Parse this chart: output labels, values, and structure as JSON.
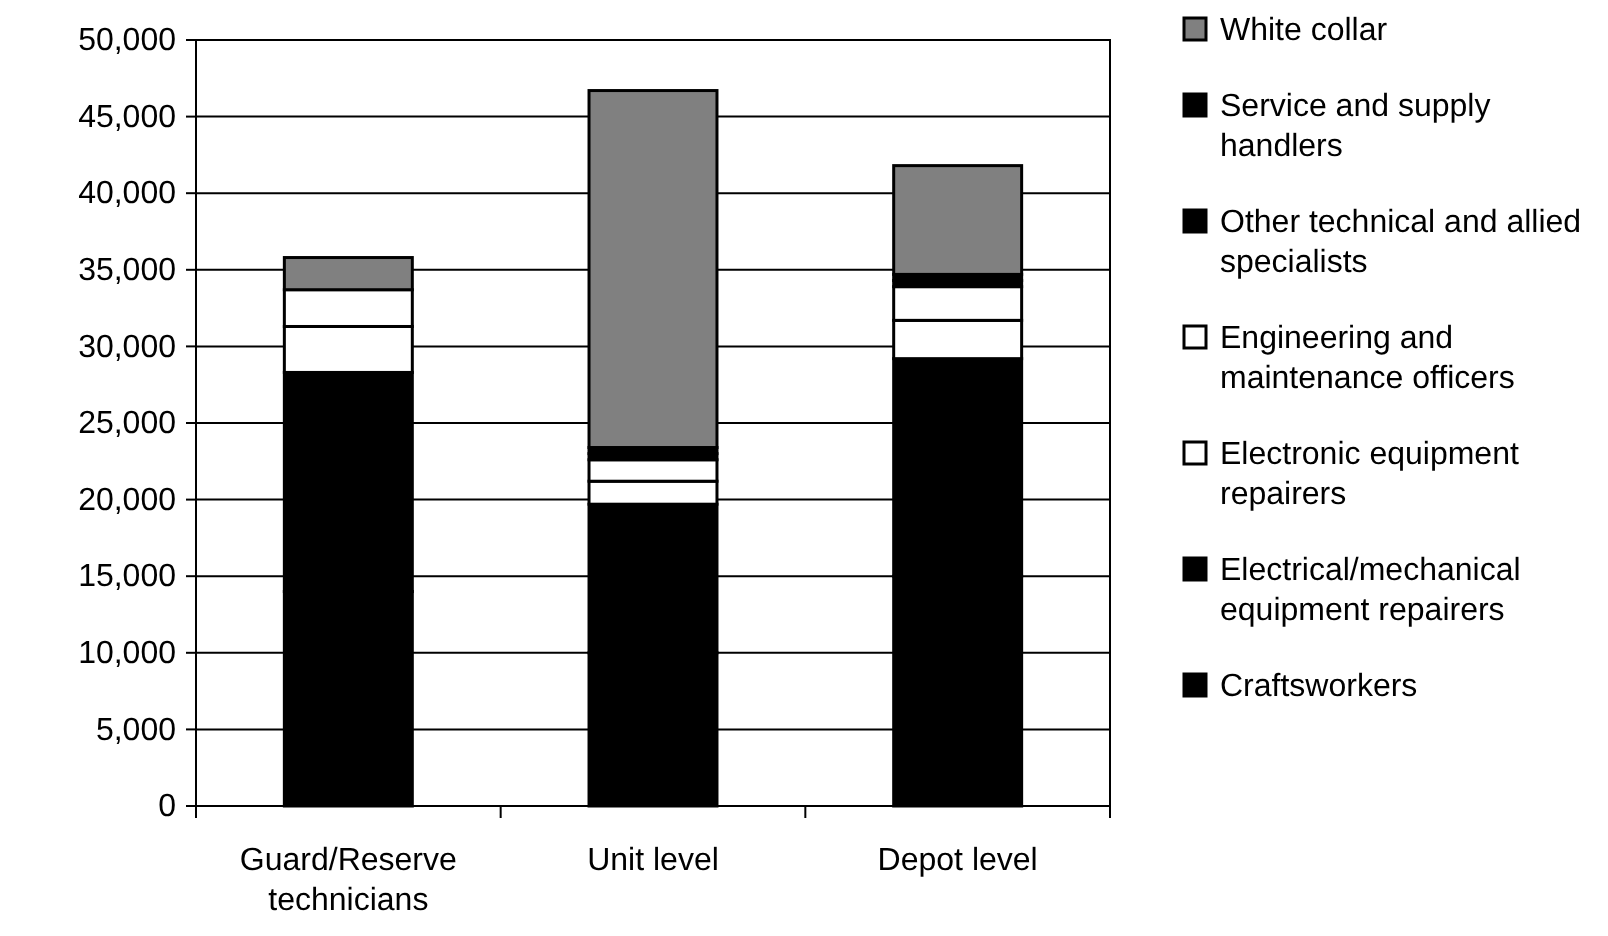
{
  "chart_data": {
    "type": "bar",
    "stacked": true,
    "categories": [
      "Guard/Reserve technicians",
      "Unit level",
      "Depot level"
    ],
    "series": [
      {
        "name": "Craftsworkers",
        "color": "#000000",
        "values": [
          14000,
          10000,
          15000
        ]
      },
      {
        "name": "Electrical/mechanical equipment repairers",
        "color": "#000000",
        "values": [
          14300,
          9700,
          14200
        ]
      },
      {
        "name": "Electronic equipment repairers",
        "color": "#ffffff",
        "values": [
          3000,
          1500,
          2500
        ]
      },
      {
        "name": "Engineering and maintenance officers",
        "color": "#ffffff",
        "values": [
          2400,
          1400,
          2200
        ]
      },
      {
        "name": "Other technical and allied specialists",
        "color": "#000000",
        "values": [
          0,
          400,
          400
        ]
      },
      {
        "name": "Service and supply handlers",
        "color": "#000000",
        "values": [
          0,
          400,
          400
        ]
      },
      {
        "name": "White collar",
        "color": "#808080",
        "values": [
          2100,
          23300,
          7100
        ]
      }
    ],
    "ylim": [
      0,
      50000
    ],
    "yticks": [
      {
        "value": 0,
        "label": "0"
      },
      {
        "value": 5000,
        "label": "5,000"
      },
      {
        "value": 10000,
        "label": "10,000"
      },
      {
        "value": 15000,
        "label": "15,000"
      },
      {
        "value": 20000,
        "label": "20,000"
      },
      {
        "value": 25000,
        "label": "25,000"
      },
      {
        "value": 30000,
        "label": "30,000"
      },
      {
        "value": 35000,
        "label": "35,000"
      },
      {
        "value": 40000,
        "label": "40,000"
      },
      {
        "value": 45000,
        "label": "45,000"
      },
      {
        "value": 50000,
        "label": "50,000"
      }
    ],
    "grid": "y",
    "legend": "right"
  }
}
